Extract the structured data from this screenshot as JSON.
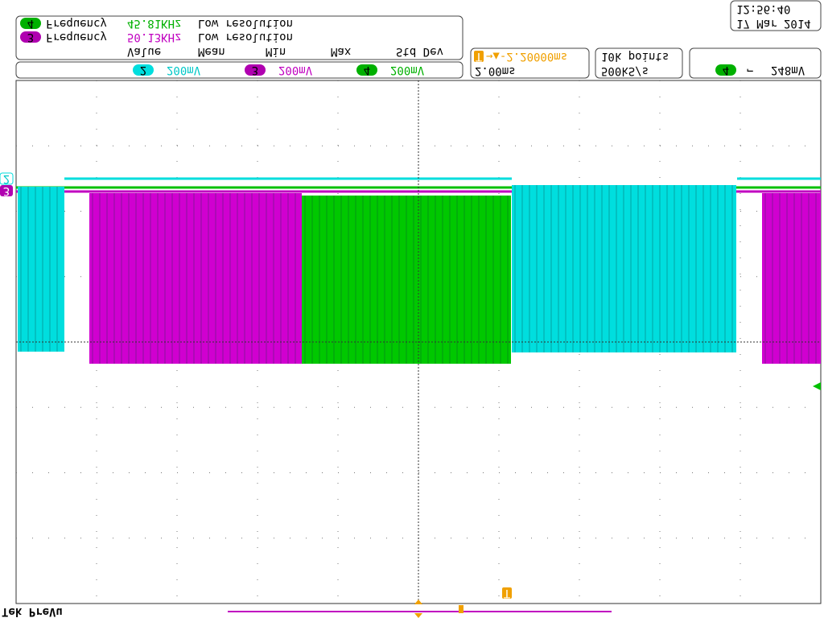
{
  "header": {
    "brand": "Tek PreVu",
    "time": "12:56:40",
    "date": "17 Mar 2014"
  },
  "measurements": {
    "rows": [
      {
        "channel": "4",
        "label": "Frequency",
        "value": "45.81KHz",
        "note": "Low resolution"
      },
      {
        "channel": "3",
        "label": "Frequency",
        "value": "50.13KHz",
        "note": "Low resolution"
      }
    ],
    "columns": [
      "Value",
      "Mean",
      "Min",
      "Max",
      "Std Dev"
    ]
  },
  "channels": [
    {
      "number": "2",
      "scale": "200mV"
    },
    {
      "number": "3",
      "scale": "200mV"
    },
    {
      "number": "4",
      "scale": "200mV"
    }
  ],
  "horizontal": {
    "trigger_delay": "→▲-2.20000ms",
    "trigger_icon": "T",
    "time_per_div": "2.00ms",
    "record_length": "10k points",
    "sample_rate": "500kS/s"
  },
  "trigger": {
    "channel": "4",
    "slope": "⌐",
    "level": "248mV"
  },
  "markers": {
    "channel_2": "2",
    "channel_3": "3",
    "trigger": "T"
  }
}
